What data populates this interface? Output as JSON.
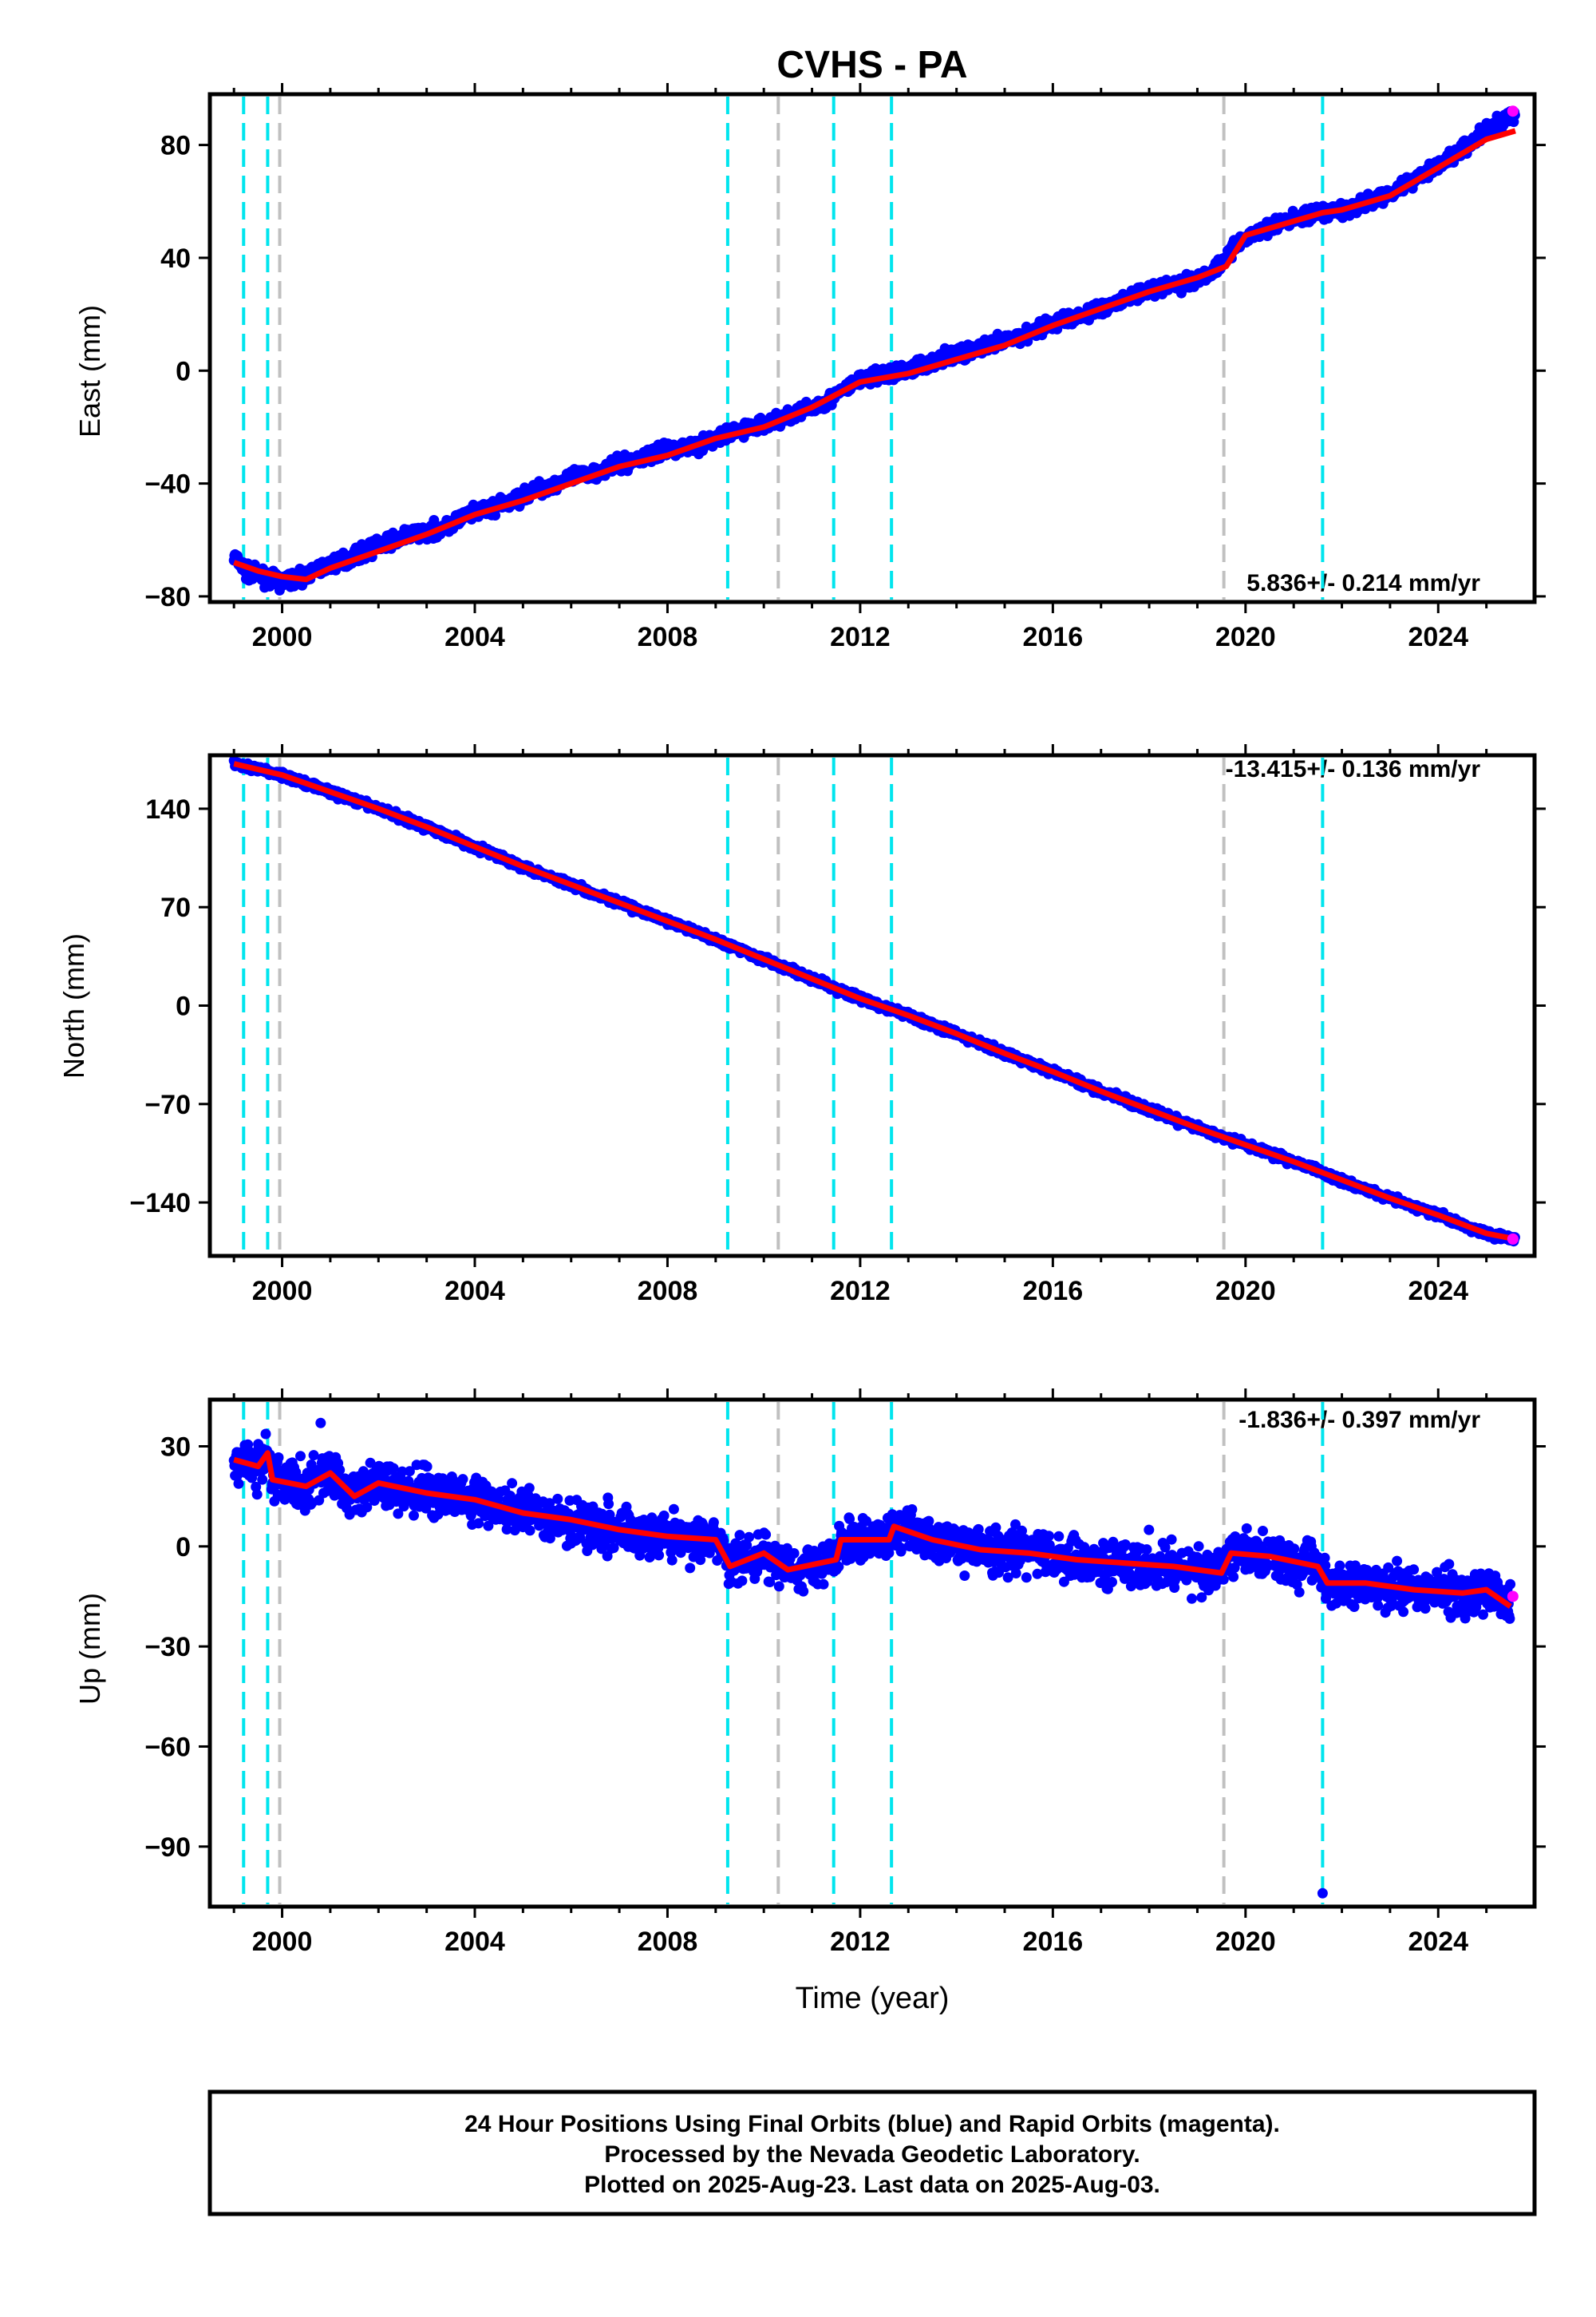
{
  "title": "CVHS - PA",
  "colors": {
    "final": "#0000ff",
    "rapid": "#ff00ff",
    "model": "#ff0000",
    "equipment_change": "#00e5ee",
    "other_event": "#c0c0c0"
  },
  "x_axis": {
    "label": "Time (year)",
    "range": [
      1998.5,
      2026.0
    ],
    "ticks": [
      {
        "value": 2000,
        "label": "2000"
      },
      {
        "value": 2004,
        "label": "2004"
      },
      {
        "value": 2008,
        "label": "2008"
      },
      {
        "value": 2012,
        "label": "2012"
      },
      {
        "value": 2016,
        "label": "2016"
      },
      {
        "value": 2020,
        "label": "2020"
      },
      {
        "value": 2024,
        "label": "2024"
      }
    ]
  },
  "event_lines": [
    {
      "year": 1999.2,
      "kind": "equipment_change"
    },
    {
      "year": 1999.7,
      "kind": "equipment_change"
    },
    {
      "year": 1999.95,
      "kind": "other_event"
    },
    {
      "year": 2009.25,
      "kind": "equipment_change"
    },
    {
      "year": 2010.3,
      "kind": "other_event"
    },
    {
      "year": 2011.45,
      "kind": "equipment_change"
    },
    {
      "year": 2012.65,
      "kind": "equipment_change"
    },
    {
      "year": 2019.55,
      "kind": "other_event"
    },
    {
      "year": 2021.6,
      "kind": "equipment_change"
    }
  ],
  "chart_data": [
    {
      "type": "scatter",
      "component": "east",
      "ylabel": "East (mm)",
      "ylim": [
        -82,
        98
      ],
      "yticks": [
        {
          "value": 80,
          "label": "80"
        },
        {
          "value": 40,
          "label": "40"
        },
        {
          "value": 0,
          "label": "0"
        },
        {
          "value": -40,
          "label": "−40"
        },
        {
          "value": -80,
          "label": "−80"
        }
      ],
      "rate_text": "5.836+/- 0.214 mm/yr",
      "rate_position": "bottom-right",
      "model_points": [
        [
          1999.0,
          -68
        ],
        [
          1999.5,
          -71
        ],
        [
          2000.0,
          -73
        ],
        [
          2000.5,
          -74
        ],
        [
          2001.0,
          -70
        ],
        [
          2002.0,
          -64
        ],
        [
          2003.0,
          -58
        ],
        [
          2004.0,
          -51
        ],
        [
          2005.0,
          -46
        ],
        [
          2006.0,
          -40
        ],
        [
          2007.0,
          -34
        ],
        [
          2008.0,
          -30
        ],
        [
          2009.0,
          -24
        ],
        [
          2010.0,
          -20
        ],
        [
          2011.0,
          -13
        ],
        [
          2012.0,
          -4
        ],
        [
          2013.0,
          -1
        ],
        [
          2014.0,
          4
        ],
        [
          2015.0,
          9
        ],
        [
          2016.0,
          16
        ],
        [
          2017.0,
          22
        ],
        [
          2018.0,
          28
        ],
        [
          2019.0,
          33
        ],
        [
          2019.6,
          37
        ],
        [
          2020.0,
          48
        ],
        [
          2021.0,
          53
        ],
        [
          2021.6,
          56
        ],
        [
          2022.0,
          57
        ],
        [
          2023.0,
          62
        ],
        [
          2024.0,
          72
        ],
        [
          2025.0,
          82
        ],
        [
          2025.6,
          85
        ]
      ],
      "data_points": [
        [
          1999.0,
          -66
        ],
        [
          1999.3,
          -72
        ],
        [
          1999.6,
          -73
        ],
        [
          2000.0,
          -75
        ],
        [
          2000.4,
          -73
        ],
        [
          2000.8,
          -70
        ],
        [
          2001.3,
          -67
        ],
        [
          2002.0,
          -62
        ],
        [
          2002.7,
          -58
        ],
        [
          2003.3,
          -56
        ],
        [
          2004.0,
          -50
        ],
        [
          2004.7,
          -47
        ],
        [
          2005.3,
          -42
        ],
        [
          2006.0,
          -38
        ],
        [
          2006.7,
          -35
        ],
        [
          2007.3,
          -32
        ],
        [
          2008.0,
          -28
        ],
        [
          2008.7,
          -26
        ],
        [
          2009.3,
          -22
        ],
        [
          2010.0,
          -19
        ],
        [
          2010.7,
          -15
        ],
        [
          2011.3,
          -11
        ],
        [
          2012.0,
          -3
        ],
        [
          2012.7,
          -1
        ],
        [
          2013.3,
          2
        ],
        [
          2014.0,
          6
        ],
        [
          2014.7,
          9
        ],
        [
          2015.3,
          12
        ],
        [
          2016.0,
          17
        ],
        [
          2016.7,
          20
        ],
        [
          2017.3,
          24
        ],
        [
          2018.0,
          29
        ],
        [
          2018.7,
          31
        ],
        [
          2019.3,
          35
        ],
        [
          2019.9,
          46
        ],
        [
          2020.5,
          51
        ],
        [
          2021.0,
          54
        ],
        [
          2021.7,
          56
        ],
        [
          2022.3,
          58
        ],
        [
          2023.0,
          63
        ],
        [
          2023.7,
          70
        ],
        [
          2024.3,
          76
        ],
        [
          2025.0,
          85
        ],
        [
          2025.5,
          90
        ]
      ],
      "rapid_points": [
        [
          2025.55,
          92
        ]
      ],
      "spread": 3.0
    },
    {
      "type": "scatter",
      "component": "north",
      "ylabel": "North (mm)",
      "ylim": [
        -178,
        178
      ],
      "yticks": [
        {
          "value": 140,
          "label": "140"
        },
        {
          "value": 70,
          "label": "70"
        },
        {
          "value": 0,
          "label": "0"
        },
        {
          "value": -70,
          "label": "−70"
        },
        {
          "value": -140,
          "label": "−140"
        }
      ],
      "rate_text": "-13.415+/- 0.136 mm/yr",
      "rate_position": "top-right",
      "model_points": [
        [
          1999.0,
          172
        ],
        [
          2000.0,
          164
        ],
        [
          2001.0,
          152
        ],
        [
          2002.0,
          140
        ],
        [
          2003.0,
          127
        ],
        [
          2004.0,
          113
        ],
        [
          2005.0,
          99
        ],
        [
          2006.0,
          86
        ],
        [
          2007.0,
          73
        ],
        [
          2008.0,
          60
        ],
        [
          2009.0,
          47
        ],
        [
          2010.0,
          33
        ],
        [
          2011.0,
          19
        ],
        [
          2012.0,
          5
        ],
        [
          2013.0,
          -7
        ],
        [
          2014.0,
          -20
        ],
        [
          2015.0,
          -34
        ],
        [
          2016.0,
          -47
        ],
        [
          2017.0,
          -61
        ],
        [
          2018.0,
          -74
        ],
        [
          2019.0,
          -87
        ],
        [
          2020.0,
          -99
        ],
        [
          2021.0,
          -111
        ],
        [
          2022.0,
          -124
        ],
        [
          2023.0,
          -137
        ],
        [
          2024.0,
          -149
        ],
        [
          2025.0,
          -162
        ],
        [
          2025.6,
          -166
        ]
      ],
      "data_points": [],
      "rapid_points": [
        [
          2025.55,
          -166
        ]
      ],
      "spread": 3.0
    },
    {
      "type": "scatter",
      "component": "up",
      "ylabel": "Up (mm)",
      "ylim": [
        -108,
        44
      ],
      "yticks": [
        {
          "value": 30,
          "label": "30"
        },
        {
          "value": 0,
          "label": "0"
        },
        {
          "value": -30,
          "label": "−30"
        },
        {
          "value": -60,
          "label": "−60"
        },
        {
          "value": -90,
          "label": "−90"
        }
      ],
      "rate_text": "-1.836+/- 0.397 mm/yr",
      "rate_position": "top-right",
      "model_points": [
        [
          1999.0,
          26
        ],
        [
          1999.5,
          24
        ],
        [
          1999.7,
          28
        ],
        [
          1999.8,
          20
        ],
        [
          2000.5,
          18
        ],
        [
          2001.0,
          22
        ],
        [
          2001.5,
          15
        ],
        [
          2002.0,
          19
        ],
        [
          2003.0,
          16
        ],
        [
          2004.0,
          14
        ],
        [
          2005.0,
          10
        ],
        [
          2006.0,
          8
        ],
        [
          2007.0,
          5
        ],
        [
          2008.0,
          3
        ],
        [
          2009.0,
          2
        ],
        [
          2009.3,
          -6
        ],
        [
          2010.0,
          -2
        ],
        [
          2010.5,
          -7
        ],
        [
          2011.5,
          -4
        ],
        [
          2011.6,
          2
        ],
        [
          2012.6,
          2
        ],
        [
          2012.7,
          6
        ],
        [
          2013.5,
          2
        ],
        [
          2014.5,
          -1
        ],
        [
          2015.5,
          -2
        ],
        [
          2016.5,
          -4
        ],
        [
          2017.5,
          -5
        ],
        [
          2018.5,
          -6
        ],
        [
          2019.5,
          -8
        ],
        [
          2019.7,
          -2
        ],
        [
          2020.5,
          -3
        ],
        [
          2021.5,
          -6
        ],
        [
          2021.7,
          -11
        ],
        [
          2022.5,
          -11
        ],
        [
          2023.5,
          -13
        ],
        [
          2024.5,
          -14
        ],
        [
          2025.0,
          -13
        ],
        [
          2025.5,
          -18
        ]
      ],
      "data_points": [
        [
          2000.8,
          37
        ],
        [
          2021.6,
          -104
        ]
      ],
      "rapid_points": [
        [
          2025.55,
          -15
        ]
      ],
      "spread": 8.0
    }
  ],
  "footer": {
    "line1": "24 Hour Positions Using Final Orbits (blue) and Rapid Orbits (magenta).",
    "line2": "Processed by the Nevada Geodetic Laboratory.",
    "line3": "Plotted on 2025-Aug-23. Last data on 2025-Aug-03."
  }
}
